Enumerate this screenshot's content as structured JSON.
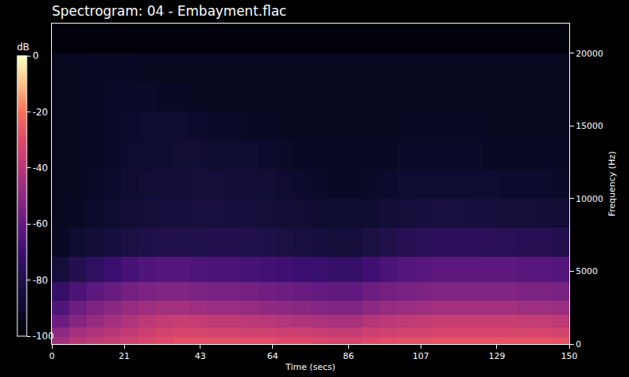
{
  "chart_data": {
    "type": "heatmap",
    "title": "Spectrogram: 04 - Embayment.flac",
    "x_label": "Time (secs)",
    "y_label": "Frequency (Hz)",
    "xlim": [
      0,
      150
    ],
    "xticks": [
      0,
      21,
      43,
      64,
      86,
      107,
      129,
      150
    ],
    "ylim": [
      0,
      22050
    ],
    "yticks": [
      0,
      5000,
      10000,
      15000,
      20000
    ],
    "colorbar": {
      "title": "dB",
      "range": [
        -100,
        0
      ],
      "ticks": [
        0,
        -20,
        -40,
        -60,
        -80,
        -100
      ]
    },
    "x": [
      2.5,
      7.5,
      12.5,
      17.5,
      22.5,
      27.5,
      32.5,
      37.5,
      42.5,
      47.5,
      52.5,
      57.5,
      62.5,
      67.5,
      72.5,
      77.5,
      82.5,
      87.5,
      92.5,
      97.5,
      102.5,
      107.5,
      112.5,
      117.5,
      122.5,
      127.5,
      132.5,
      137.5,
      142.5,
      147.5
    ],
    "y": [
      250,
      750,
      1500,
      2500,
      3500,
      5000,
      7000,
      9000,
      11000,
      13000,
      15000,
      17000,
      19000,
      21000
    ],
    "z": [
      [
        -45,
        -40,
        -38,
        -36,
        -34,
        -32,
        -30,
        -28,
        -28,
        -28,
        -28,
        -29,
        -29,
        -30,
        -30,
        -31,
        -32,
        -32,
        -30,
        -29,
        -28,
        -28,
        -27,
        -27,
        -27,
        -27,
        -27,
        -27,
        -27,
        -28
      ],
      [
        -50,
        -45,
        -42,
        -40,
        -38,
        -35,
        -33,
        -32,
        -32,
        -33,
        -33,
        -34,
        -34,
        -35,
        -35,
        -36,
        -37,
        -37,
        -35,
        -34,
        -33,
        -33,
        -32,
        -32,
        -32,
        -32,
        -32,
        -32,
        -32,
        -33
      ],
      [
        -58,
        -52,
        -48,
        -45,
        -42,
        -39,
        -37,
        -36,
        -37,
        -38,
        -38,
        -39,
        -40,
        -41,
        -42,
        -43,
        -44,
        -44,
        -41,
        -39,
        -38,
        -37,
        -36,
        -36,
        -36,
        -36,
        -36,
        -37,
        -37,
        -38
      ],
      [
        -65,
        -58,
        -54,
        -51,
        -48,
        -46,
        -45,
        -45,
        -46,
        -47,
        -47,
        -48,
        -49,
        -50,
        -51,
        -52,
        -53,
        -53,
        -50,
        -48,
        -47,
        -46,
        -45,
        -45,
        -45,
        -45,
        -45,
        -46,
        -46,
        -47
      ],
      [
        -72,
        -66,
        -62,
        -59,
        -56,
        -54,
        -53,
        -53,
        -54,
        -55,
        -55,
        -56,
        -57,
        -58,
        -59,
        -60,
        -61,
        -61,
        -58,
        -56,
        -55,
        -54,
        -53,
        -53,
        -53,
        -53,
        -53,
        -54,
        -54,
        -55
      ],
      [
        -85,
        -78,
        -74,
        -70,
        -67,
        -65,
        -64,
        -64,
        -65,
        -66,
        -66,
        -67,
        -68,
        -69,
        -70,
        -71,
        -72,
        -72,
        -69,
        -66,
        -64,
        -63,
        -62,
        -62,
        -62,
        -62,
        -62,
        -63,
        -63,
        -64
      ],
      [
        -92,
        -88,
        -86,
        -84,
        -82,
        -80,
        -79,
        -79,
        -79,
        -78,
        -78,
        -79,
        -80,
        -82,
        -83,
        -84,
        -85,
        -85,
        -82,
        -79,
        -77,
        -76,
        -75,
        -75,
        -75,
        -76,
        -76,
        -77,
        -77,
        -78
      ],
      [
        -93,
        -92,
        -90,
        -88,
        -86,
        -85,
        -84,
        -84,
        -83,
        -83,
        -84,
        -84,
        -85,
        -86,
        -87,
        -88,
        -89,
        -89,
        -88,
        -86,
        -85,
        -84,
        -83,
        -83,
        -84,
        -84,
        -85,
        -85,
        -86,
        -86
      ],
      [
        -93,
        -93,
        -91,
        -90,
        -88,
        -87,
        -86,
        -86,
        -85,
        -85,
        -86,
        -86,
        -87,
        -88,
        -90,
        -91,
        -92,
        -92,
        -91,
        -90,
        -89,
        -88,
        -88,
        -88,
        -89,
        -89,
        -90,
        -90,
        -90,
        -91
      ],
      [
        -93,
        -93,
        -92,
        -91,
        -89,
        -88,
        -88,
        -87,
        -87,
        -88,
        -88,
        -89,
        -90,
        -91,
        -92,
        -92,
        -92,
        -92,
        -92,
        -92,
        -91,
        -91,
        -91,
        -91,
        -91,
        -92,
        -92,
        -92,
        -92,
        -92
      ],
      [
        -93,
        -93,
        -92,
        -91,
        -90,
        -89,
        -89,
        -89,
        -90,
        -91,
        -91,
        -92,
        -92,
        -93,
        -93,
        -93,
        -93,
        -93,
        -93,
        -93,
        -92,
        -92,
        -92,
        -92,
        -92,
        -93,
        -93,
        -93,
        -93,
        -93
      ],
      [
        -93,
        -93,
        -92,
        -91,
        -91,
        -91,
        -92,
        -92,
        -93,
        -93,
        -93,
        -93,
        -93,
        -93,
        -93,
        -93,
        -93,
        -93,
        -93,
        -93,
        -93,
        -93,
        -93,
        -93,
        -93,
        -93,
        -93,
        -93,
        -93,
        -93
      ],
      [
        -93,
        -93,
        -92,
        -92,
        -92,
        -93,
        -93,
        -93,
        -93,
        -93,
        -93,
        -93,
        -93,
        -93,
        -93,
        -93,
        -93,
        -93,
        -93,
        -93,
        -93,
        -93,
        -93,
        -93,
        -93,
        -93,
        -93,
        -93,
        -93,
        -93
      ],
      [
        -98,
        -98,
        -98,
        -98,
        -98,
        -98,
        -98,
        -98,
        -98,
        -98,
        -98,
        -98,
        -98,
        -98,
        -98,
        -98,
        -98,
        -98,
        -98,
        -98,
        -98,
        -98,
        -98,
        -98,
        -98,
        -98,
        -98,
        -98,
        -98,
        -98
      ]
    ]
  }
}
